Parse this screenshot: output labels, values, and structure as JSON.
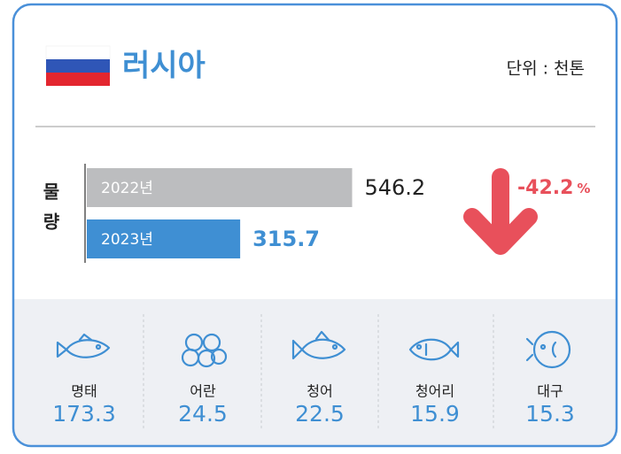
{
  "header": {
    "title": "러시아",
    "unit": "단위 : 천톤"
  },
  "chart_data": {
    "type": "bar",
    "orientation": "horizontal",
    "axis_label": [
      "물",
      "량"
    ],
    "categories": [
      "2022년",
      "2023년"
    ],
    "values": [
      546.2,
      315.7
    ],
    "colors": [
      "#bcbdbf",
      "#3f8fd3"
    ],
    "xlim": [
      0,
      600
    ],
    "change": {
      "value": -42.2,
      "unit": "%",
      "color": "#e8505b"
    }
  },
  "items": [
    {
      "name": "명태",
      "value": 173.3
    },
    {
      "name": "어란",
      "value": 24.5
    },
    {
      "name": "청어",
      "value": 22.5
    },
    {
      "name": "청어리",
      "value": 15.9
    },
    {
      "name": "대구",
      "value": 15.3
    }
  ]
}
